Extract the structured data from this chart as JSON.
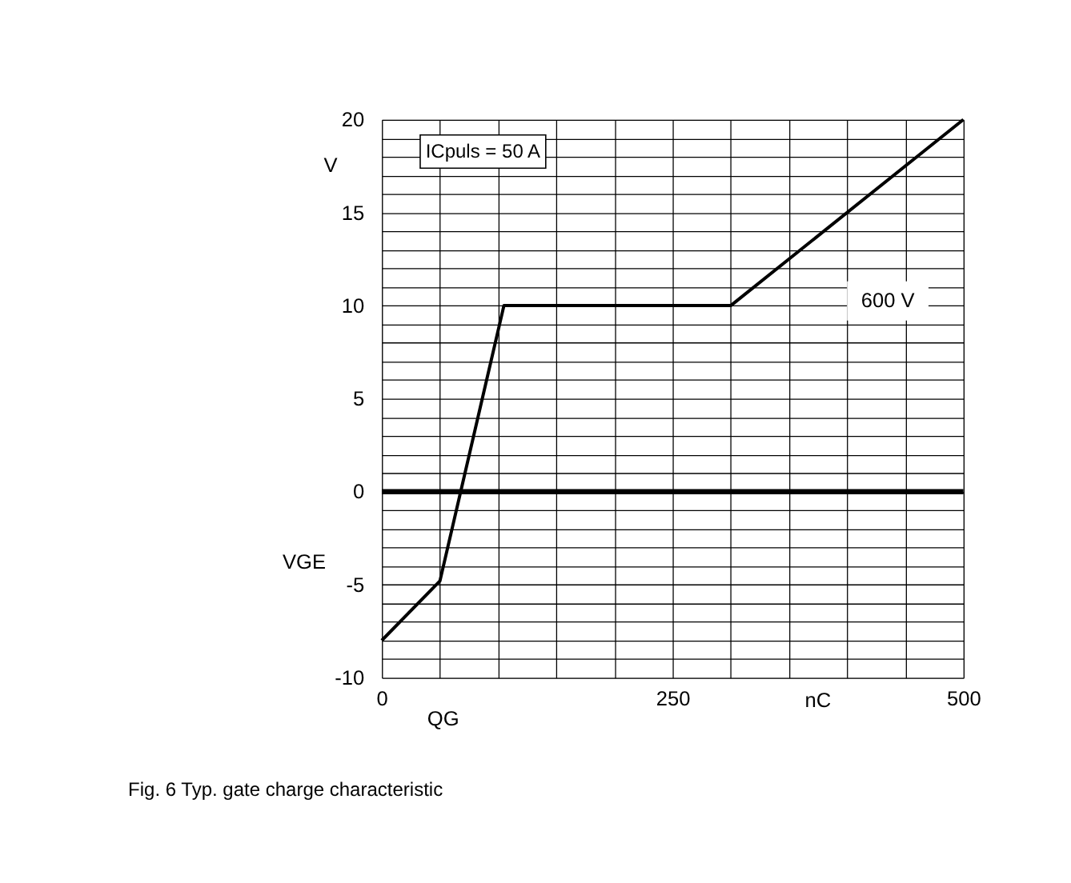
{
  "chart_data": {
    "type": "line",
    "title": "Fig. 6 Typ. gate charge characteristic",
    "xlabel": "QG",
    "ylabel": "VGE",
    "annotations": [
      "V",
      "nC",
      "ICpuls = 50 A"
    ],
    "series": [
      {
        "name": "600 V",
        "color": "#000000",
        "x": [
          0,
          50,
          105,
          300,
          500
        ],
        "values": [
          -8,
          -4.8,
          10,
          10,
          20
        ]
      }
    ],
    "xlim": [
      0,
      500
    ],
    "ylim": [
      -10,
      20
    ],
    "xticks": [
      0,
      {
        "value": 50,
        "label": null
      },
      {
        "value": 100,
        "label": null
      },
      {
        "value": 150,
        "label": null
      },
      {
        "value": 200,
        "label": null
      },
      250,
      {
        "value": 300,
        "label": null
      },
      {
        "value": 350,
        "label": null
      },
      {
        "value": 400,
        "label": null
      },
      {
        "value": 450,
        "label": null
      },
      500
    ],
    "yticks": [
      -10,
      {
        "value": -9,
        "label": null
      },
      {
        "value": -8,
        "label": null
      },
      {
        "value": -7,
        "label": null
      },
      {
        "value": -6,
        "label": null
      },
      -5,
      {
        "value": -4,
        "label": null
      },
      {
        "value": -3,
        "label": null
      },
      {
        "value": -2,
        "label": null
      },
      {
        "value": -1,
        "label": null
      },
      0,
      {
        "value": 1,
        "label": null
      },
      {
        "value": 2,
        "label": null
      },
      {
        "value": 3,
        "label": null
      },
      {
        "value": 4,
        "label": null
      },
      5,
      {
        "value": 6,
        "label": null
      },
      {
        "value": 7,
        "label": null
      },
      {
        "value": 8,
        "label": null
      },
      {
        "value": 9,
        "label": null
      },
      10,
      {
        "value": 11,
        "label": null
      },
      {
        "value": 12,
        "label": null
      },
      {
        "value": 13,
        "label": null
      },
      {
        "value": 14,
        "label": null
      },
      15,
      {
        "value": 16,
        "label": null
      },
      {
        "value": 17,
        "label": null
      },
      {
        "value": 18,
        "label": null
      },
      {
        "value": 19,
        "label": null
      },
      20
    ],
    "ref_lines": [
      {
        "axis": "y",
        "value": 0,
        "color": "#000000"
      }
    ],
    "grid": true,
    "marker": "none",
    "line_style": "solid"
  }
}
